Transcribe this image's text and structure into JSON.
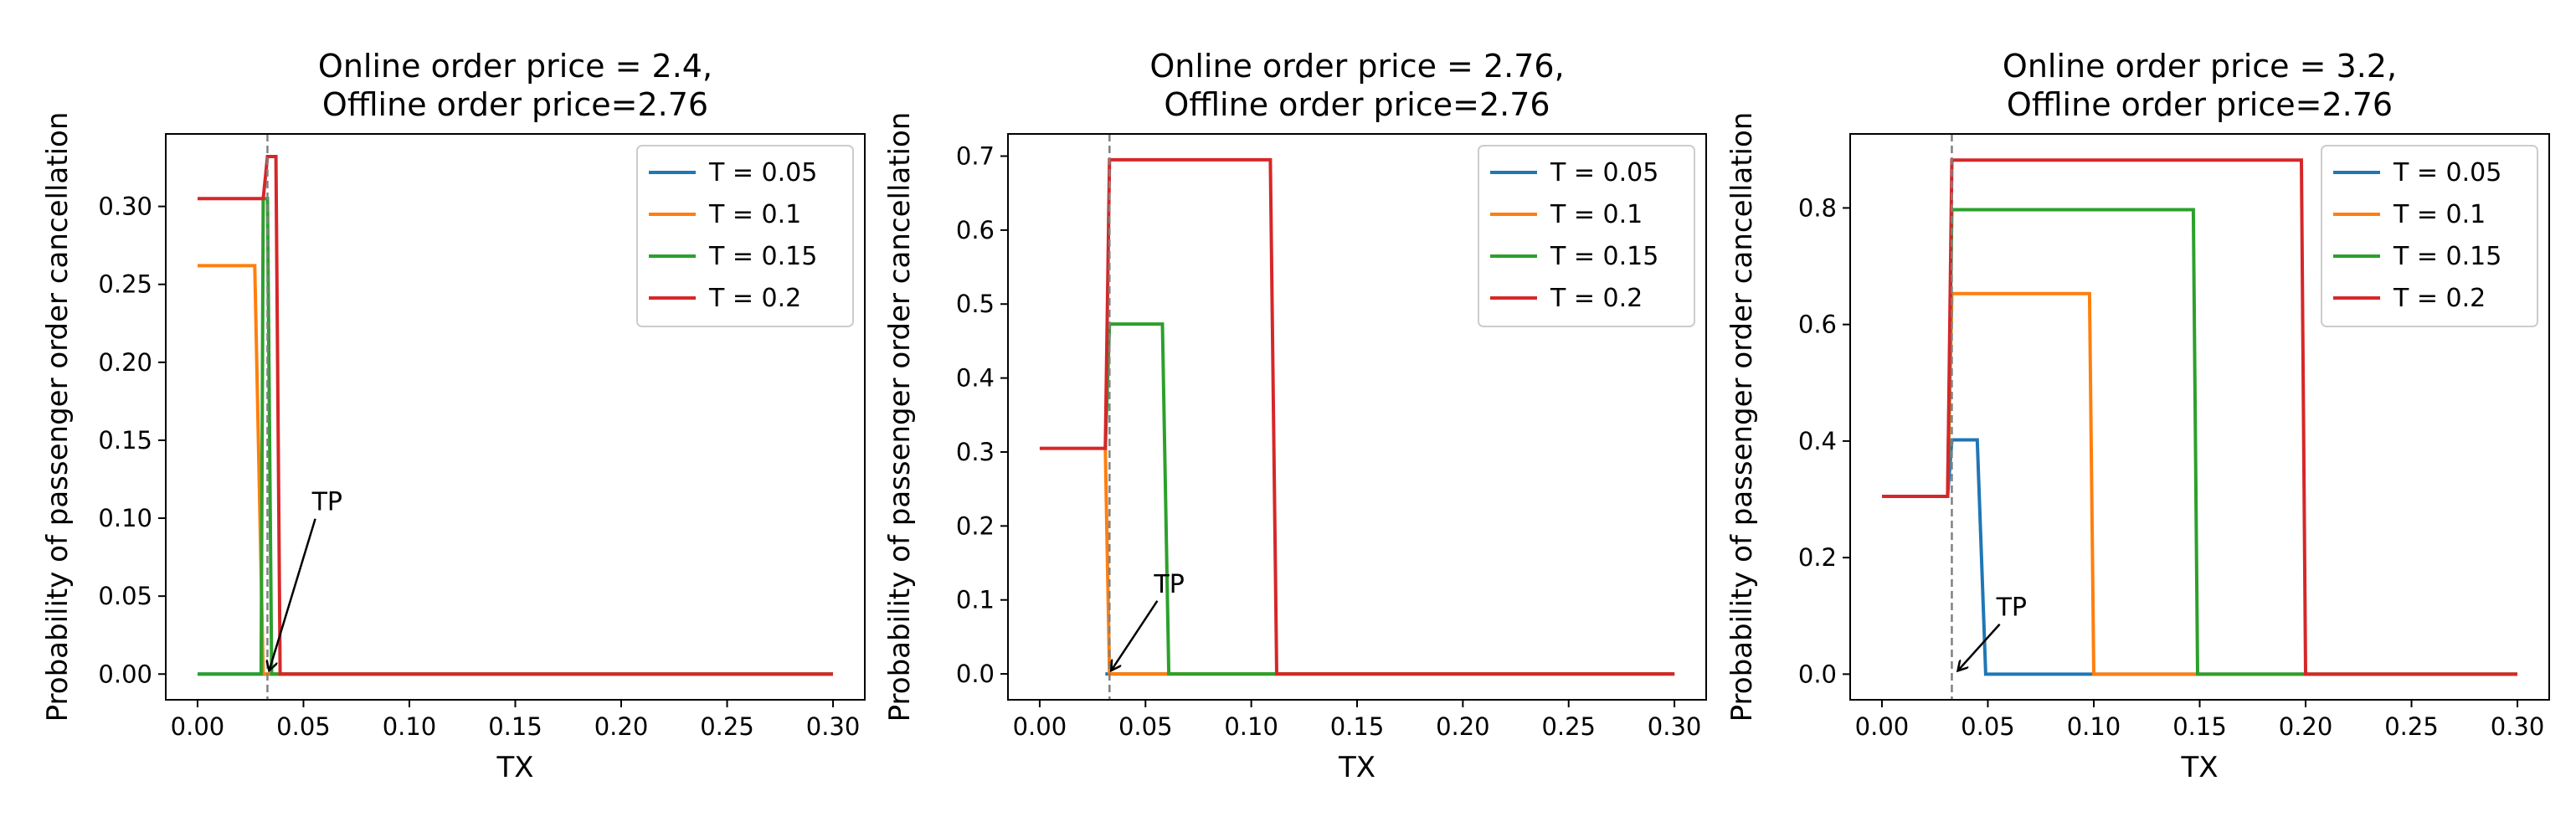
{
  "chart_data": [
    {
      "type": "line",
      "title": [
        "Online order price = 2.4,",
        "Offline order price=2.76"
      ],
      "xlabel": "TX",
      "ylabel": "Probability of passenger order cancellation",
      "xlim": [
        -0.015,
        0.315
      ],
      "ylim": [
        -0.0165,
        0.3465
      ],
      "xticks": [
        0.0,
        0.05,
        0.1,
        0.15,
        0.2,
        0.25,
        0.3
      ],
      "xtick_labels": [
        "0.00",
        "0.05",
        "0.10",
        "0.15",
        "0.20",
        "0.25",
        "0.30"
      ],
      "yticks": [
        0.0,
        0.05,
        0.1,
        0.15,
        0.2,
        0.25,
        0.3
      ],
      "ytick_labels": [
        "0.00",
        "0.05",
        "0.10",
        "0.15",
        "0.20",
        "0.25",
        "0.30"
      ],
      "vline_x": 0.033,
      "annotation": {
        "text": "TP",
        "xy": [
          0.033,
          0.0
        ],
        "xytext": [
          0.054,
          0.105
        ]
      },
      "legend_position": "top-right",
      "series": [
        {
          "name": "T = 0.05",
          "color": "#1f77b4",
          "points": [
            [
              0.0,
              0.0
            ],
            [
              0.3,
              0.0
            ]
          ]
        },
        {
          "name": "T = 0.1",
          "color": "#ff7f0e",
          "points": [
            [
              0.0,
              0.262
            ],
            [
              0.027,
              0.262
            ],
            [
              0.031,
              0.0
            ],
            [
              0.3,
              0.0
            ]
          ]
        },
        {
          "name": "T = 0.15",
          "color": "#2ca02c",
          "points": [
            [
              0.0,
              0.0
            ],
            [
              0.03,
              0.0
            ],
            [
              0.031,
              0.305
            ],
            [
              0.033,
              0.305
            ],
            [
              0.035,
              0.0
            ],
            [
              0.3,
              0.0
            ]
          ]
        },
        {
          "name": "T = 0.2",
          "color": "#d62728",
          "points": [
            [
              0.0,
              0.305
            ],
            [
              0.031,
              0.305
            ],
            [
              0.033,
              0.332
            ],
            [
              0.037,
              0.332
            ],
            [
              0.039,
              0.0
            ],
            [
              0.3,
              0.0
            ]
          ]
        }
      ]
    },
    {
      "type": "line",
      "title": [
        "Online order price = 2.76,",
        "Offline order price=2.76"
      ],
      "xlabel": "TX",
      "ylabel": "Probability of passenger order cancellation",
      "xlim": [
        -0.015,
        0.315
      ],
      "ylim": [
        -0.035,
        0.73
      ],
      "xticks": [
        0.0,
        0.05,
        0.1,
        0.15,
        0.2,
        0.25,
        0.3
      ],
      "xtick_labels": [
        "0.00",
        "0.05",
        "0.10",
        "0.15",
        "0.20",
        "0.25",
        "0.30"
      ],
      "yticks": [
        0.0,
        0.1,
        0.2,
        0.3,
        0.4,
        0.5,
        0.6,
        0.7
      ],
      "ytick_labels": [
        "0.0",
        "0.1",
        "0.2",
        "0.3",
        "0.4",
        "0.5",
        "0.6",
        "0.7"
      ],
      "vline_x": 0.033,
      "annotation": {
        "text": "TP",
        "xy": [
          0.033,
          0.0
        ],
        "xytext": [
          0.054,
          0.11
        ]
      },
      "legend_position": "top-right",
      "series": [
        {
          "name": "T = 0.05",
          "color": "#1f77b4",
          "points": [
            [
              0.031,
              0.0
            ],
            [
              0.3,
              0.0
            ]
          ]
        },
        {
          "name": "T = 0.1",
          "color": "#ff7f0e",
          "points": [
            [
              0.031,
              0.305
            ],
            [
              0.033,
              0.0
            ],
            [
              0.3,
              0.0
            ]
          ]
        },
        {
          "name": "T = 0.15",
          "color": "#2ca02c",
          "points": [
            [
              0.031,
              0.305
            ],
            [
              0.033,
              0.473
            ],
            [
              0.058,
              0.473
            ],
            [
              0.061,
              0.0
            ],
            [
              0.3,
              0.0
            ]
          ]
        },
        {
          "name": "T = 0.2",
          "color": "#d62728",
          "points": [
            [
              0.0,
              0.305
            ],
            [
              0.031,
              0.305
            ],
            [
              0.033,
              0.695
            ],
            [
              0.109,
              0.695
            ],
            [
              0.112,
              0.0
            ],
            [
              0.3,
              0.0
            ]
          ]
        }
      ]
    },
    {
      "type": "line",
      "title": [
        "Online order price = 3.2,",
        "Offline order price=2.76"
      ],
      "xlabel": "TX",
      "ylabel": "Probability of passenger order cancellation",
      "xlim": [
        -0.015,
        0.315
      ],
      "ylim": [
        -0.044,
        0.927
      ],
      "xticks": [
        0.0,
        0.05,
        0.1,
        0.15,
        0.2,
        0.25,
        0.3
      ],
      "xtick_labels": [
        "0.00",
        "0.05",
        "0.10",
        "0.15",
        "0.20",
        "0.25",
        "0.30"
      ],
      "yticks": [
        0.0,
        0.2,
        0.4,
        0.6,
        0.8
      ],
      "ytick_labels": [
        "0.0",
        "0.2",
        "0.4",
        "0.6",
        "0.8"
      ],
      "vline_x": 0.033,
      "annotation": {
        "text": "TP",
        "xy": [
          0.035,
          0.0
        ],
        "xytext": [
          0.054,
          0.1
        ]
      },
      "legend_position": "top-right",
      "series": [
        {
          "name": "T = 0.05",
          "color": "#1f77b4",
          "points": [
            [
              0.0,
              0.305
            ],
            [
              0.031,
              0.305
            ],
            [
              0.033,
              0.402
            ],
            [
              0.045,
              0.402
            ],
            [
              0.049,
              0.0
            ],
            [
              0.3,
              0.0
            ]
          ]
        },
        {
          "name": "T = 0.1",
          "color": "#ff7f0e",
          "points": [
            [
              0.0,
              0.305
            ],
            [
              0.031,
              0.305
            ],
            [
              0.033,
              0.653
            ],
            [
              0.098,
              0.653
            ],
            [
              0.1,
              0.0
            ],
            [
              0.3,
              0.0
            ]
          ]
        },
        {
          "name": "T = 0.15",
          "color": "#2ca02c",
          "points": [
            [
              0.0,
              0.305
            ],
            [
              0.031,
              0.305
            ],
            [
              0.033,
              0.797
            ],
            [
              0.147,
              0.797
            ],
            [
              0.149,
              0.0
            ],
            [
              0.3,
              0.0
            ]
          ]
        },
        {
          "name": "T = 0.2",
          "color": "#d62728",
          "points": [
            [
              0.0,
              0.305
            ],
            [
              0.031,
              0.305
            ],
            [
              0.033,
              0.882
            ],
            [
              0.198,
              0.882
            ],
            [
              0.2,
              0.0
            ],
            [
              0.3,
              0.0
            ]
          ]
        }
      ]
    }
  ]
}
